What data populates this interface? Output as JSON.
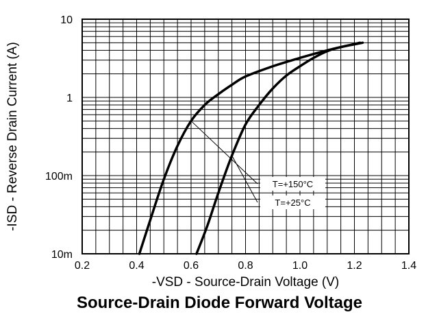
{
  "chart_data": {
    "type": "line",
    "title": "Source-Drain Diode Forward Voltage",
    "xlabel": "-VSD - Source-Drain Voltage (V)",
    "ylabel": "-ISD - Reverse Drain Current (A)",
    "xlim": [
      0.2,
      1.4
    ],
    "ylim": [
      0.01,
      10
    ],
    "x_scale": "linear",
    "y_scale": "log",
    "grid": true,
    "x_ticks": [
      0.2,
      0.4,
      0.6,
      0.8,
      1.0,
      1.2,
      1.4
    ],
    "x_tick_labels": [
      "0.2",
      "0.4",
      "0.6",
      "0.8",
      "1.0",
      "1.2",
      "1.4"
    ],
    "y_ticks": [
      0.01,
      0.1,
      1,
      10
    ],
    "y_tick_labels": [
      "10m",
      "100m",
      "1",
      "10"
    ],
    "series": [
      {
        "name": "T=+150°C",
        "x": [
          0.41,
          0.45,
          0.5,
          0.55,
          0.6,
          0.65,
          0.7,
          0.75,
          0.8,
          0.9,
          1.0,
          1.1,
          1.22
        ],
        "y": [
          0.01,
          0.027,
          0.09,
          0.24,
          0.5,
          0.8,
          1.1,
          1.45,
          1.85,
          2.5,
          3.2,
          4.0,
          5.0
        ]
      },
      {
        "name": "T=+25°C",
        "x": [
          0.62,
          0.66,
          0.7,
          0.75,
          0.8,
          0.85,
          0.9,
          0.95,
          1.0,
          1.05,
          1.1,
          1.15,
          1.23
        ],
        "y": [
          0.01,
          0.023,
          0.06,
          0.18,
          0.45,
          0.8,
          1.3,
          1.9,
          2.5,
          3.2,
          3.9,
          4.4,
          5.0
        ]
      }
    ],
    "annotations": [
      {
        "text": "T=+150°C",
        "series": 0,
        "point": [
          0.6,
          0.5
        ]
      },
      {
        "text": "T=+25°C",
        "series": 1,
        "point": [
          0.75,
          0.18
        ]
      }
    ]
  }
}
